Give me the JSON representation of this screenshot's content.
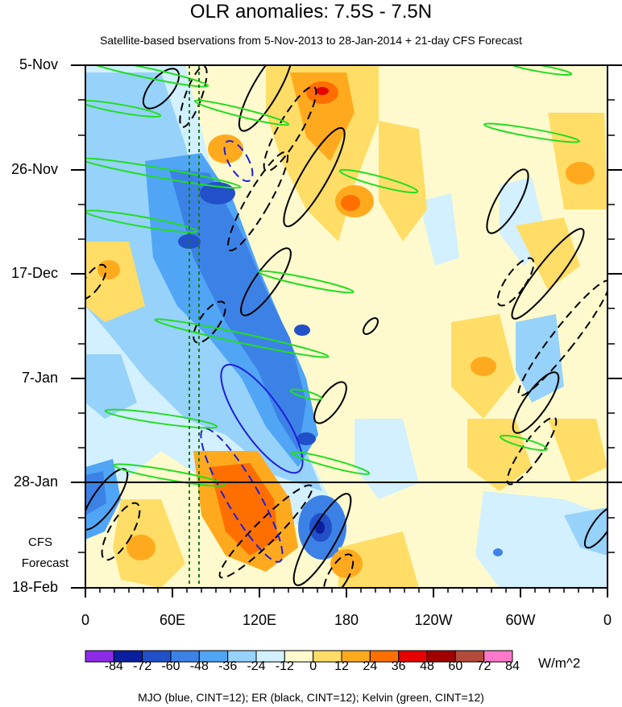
{
  "title": "OLR anomalies: 7.5S - 7.5N",
  "subtitle": "Satellite-based bservations from 5-Nov-2013 to 28-Jan-2014 + 21-day CFS Forecast",
  "forecast_label_1": "CFS",
  "forecast_label_2": "Forecast",
  "units": "W/m^2",
  "caption": "MJO (blue, CINT=12); ER (black, CINT=12); Kelvin (green, CINT=12)",
  "colorbar": {
    "colors": [
      "#8c2be6",
      "#0c1ea0",
      "#2250c8",
      "#3c82e6",
      "#50a5f5",
      "#96d2fa",
      "#d2f0ff",
      "#fffacd",
      "#ffdd66",
      "#ffaa1e",
      "#ff6f00",
      "#e60000",
      "#a00000",
      "#b44a3a",
      "#ff78c8"
    ],
    "labels": [
      "-84",
      "-72",
      "-60",
      "-48",
      "-36",
      "-24",
      "-12",
      "0",
      "12",
      "24",
      "36",
      "48",
      "60",
      "72",
      "84"
    ]
  },
  "chart_data": {
    "type": "heatmap",
    "title": "OLR anomalies: 7.5S - 7.5N",
    "subtitle": "Satellite-based bservations from 5-Nov-2013 to 28-Jan-2014 + 21-day CFS Forecast",
    "x_tick_labels": [
      "0",
      "60E",
      "120E",
      "180",
      "120W",
      "60W",
      "0"
    ],
    "x_values": [
      0,
      60,
      120,
      180,
      240,
      300,
      360
    ],
    "y_tick_labels": [
      "5-Nov",
      "26-Nov",
      "17-Dec",
      "7-Jan",
      "28-Jan",
      "18-Feb"
    ],
    "y_values": [
      "2013-11-05",
      "2013-11-26",
      "2013-12-17",
      "2014-01-07",
      "2014-01-28",
      "2014-02-18"
    ],
    "forecast_start": "2014-01-28",
    "reference_longitudes_dashed_green": [
      72,
      80
    ],
    "color_levels": [
      -84,
      -72,
      -60,
      -48,
      -36,
      -24,
      -12,
      0,
      12,
      24,
      36,
      48,
      60,
      72,
      84
    ],
    "units": "W/m^2",
    "overlays": [
      "MJO (blue, CINT=12)",
      "ER (black, CINT=12)",
      "Kelvin (green, CINT=12)"
    ]
  }
}
